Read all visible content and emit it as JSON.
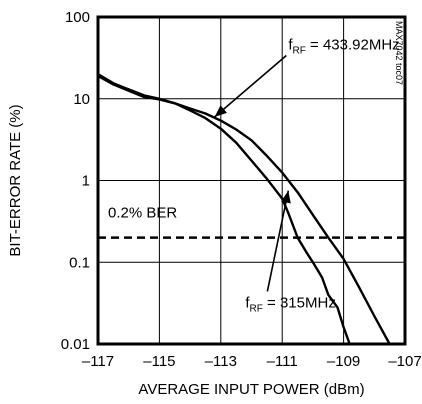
{
  "chart_data": {
    "type": "line",
    "title": "",
    "xlabel": "AVERAGE INPUT POWER (dBm)",
    "ylabel": "BIT-ERROR RATE (%)",
    "xlim": [
      -117,
      -107
    ],
    "ylim": [
      0.01,
      100
    ],
    "y_scale": "log",
    "x_ticks": [
      -117,
      -115,
      -113,
      -111,
      -109,
      -107
    ],
    "x_tick_labels": [
      "–117",
      "–115",
      "–113",
      "–111",
      "–109",
      "–107"
    ],
    "y_ticks": [
      100,
      10,
      1,
      0.1,
      0.01
    ],
    "y_tick_labels": [
      "100",
      "10",
      "1",
      "0.1",
      "0.01"
    ],
    "grid": true,
    "series": [
      {
        "label_prefix": "f",
        "label_sub": "RF",
        "label_value": " = 433.92MHz",
        "x": [
          -117,
          -116.5,
          -116,
          -115.5,
          -115,
          -114.5,
          -114,
          -113.5,
          -113,
          -112.5,
          -112,
          -111.5,
          -111,
          -110.5,
          -110,
          -109.5,
          -109,
          -108.5,
          -108,
          -107.5
        ],
        "y": [
          20,
          15.5,
          13,
          11,
          10,
          8.8,
          7.6,
          6.6,
          5.4,
          4.2,
          3.1,
          2.0,
          1.25,
          0.72,
          0.38,
          0.2,
          0.11,
          0.05,
          0.022,
          0.01
        ]
      },
      {
        "label_prefix": "f",
        "label_sub": "RF",
        "label_value": " = 315MHz",
        "x": [
          -117,
          -116.5,
          -116,
          -115.5,
          -115,
          -114.5,
          -114,
          -113.5,
          -113,
          -112.5,
          -112,
          -111.5,
          -111,
          -110.8,
          -110.5,
          -110.2,
          -110,
          -109.7,
          -109.5,
          -109.2,
          -109,
          -108.8
        ],
        "y": [
          19,
          15,
          12.5,
          10.5,
          9.8,
          8.8,
          7.2,
          5.8,
          4.3,
          2.9,
          1.75,
          1.05,
          0.6,
          0.4,
          0.2,
          0.13,
          0.1,
          0.065,
          0.04,
          0.028,
          0.016,
          0.01
        ]
      }
    ],
    "reference_line": {
      "y": 0.2,
      "label": "0.2% BER",
      "style": "dashed"
    },
    "annotations": [
      {
        "series": 0,
        "text_x": -110.8,
        "text_y": 40,
        "arrow_to": [
          -113.2,
          6.0
        ]
      },
      {
        "series": 1,
        "text_x": -112.2,
        "text_y": 0.028,
        "arrow_to": [
          -110.8,
          0.75
        ]
      }
    ],
    "figure_id": "MAX7042 toc07"
  }
}
